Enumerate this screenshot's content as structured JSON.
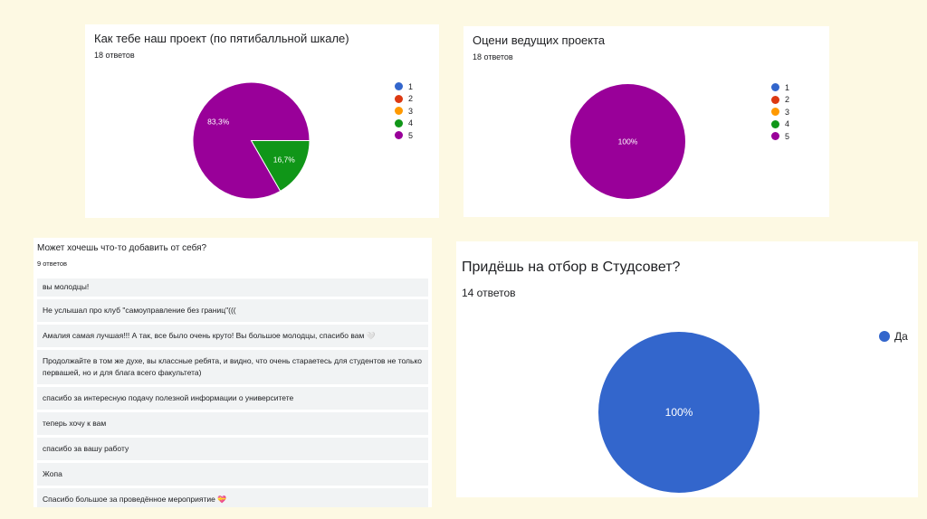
{
  "colors": {
    "blue": "#3366cc",
    "red": "#dc3912",
    "orange": "#ff9900",
    "green": "#109618",
    "purple": "#990099",
    "background": "#fdf9e3"
  },
  "cards": {
    "rating": {
      "title": "Как тебе наш проект (по пятибалльной шкале)",
      "count": "18 ответов"
    },
    "hosts": {
      "title": "Оцени ведущих проекта",
      "count": "18 ответов"
    },
    "answers": {
      "title": "Может хочешь что-то добавить от себя?",
      "count": "9 ответов",
      "items": [
        "вы молодцы!",
        "Не услышал про клуб \"самоуправление без границ\"(((",
        "Амалия самая лучшая!!! А так, все было очень круто! Вы большое молодцы, спасибо вам",
        "Продолжайте в том же духе, вы классные ребята, и видно, что очень стараетесь для студентов не только первашей, но и для блага всего факультета)",
        "спасибо за интересную подачу полезной информации о университете",
        "теперь хочу к вам",
        "спасибо за вашу работу",
        "Жопа",
        "Спасибо большое за проведённое мероприятие"
      ],
      "emoji": [
        "🤍",
        "💝"
      ]
    },
    "studsovet": {
      "title": "Придёшь на отбор в Студсовет?",
      "count": "14 ответов"
    }
  },
  "chart_data": [
    {
      "type": "pie",
      "categories": [
        "1",
        "2",
        "3",
        "4",
        "5"
      ],
      "values": [
        0,
        0,
        0,
        16.7,
        83.3
      ],
      "labels": [
        "",
        "",
        "",
        "16,7%",
        "83,3%"
      ],
      "colors": [
        "#3366cc",
        "#dc3912",
        "#ff9900",
        "#109618",
        "#990099"
      ],
      "legend": "right"
    },
    {
      "type": "pie",
      "categories": [
        "1",
        "2",
        "3",
        "4",
        "5"
      ],
      "values": [
        0,
        0,
        0,
        0,
        100
      ],
      "labels": [
        "",
        "",
        "",
        "",
        "100%"
      ],
      "colors": [
        "#3366cc",
        "#dc3912",
        "#ff9900",
        "#109618",
        "#990099"
      ],
      "legend": "right"
    },
    {
      "type": "pie",
      "categories": [
        "Да"
      ],
      "values": [
        100
      ],
      "labels": [
        "100%"
      ],
      "colors": [
        "#3366cc"
      ],
      "legend": "right"
    }
  ]
}
